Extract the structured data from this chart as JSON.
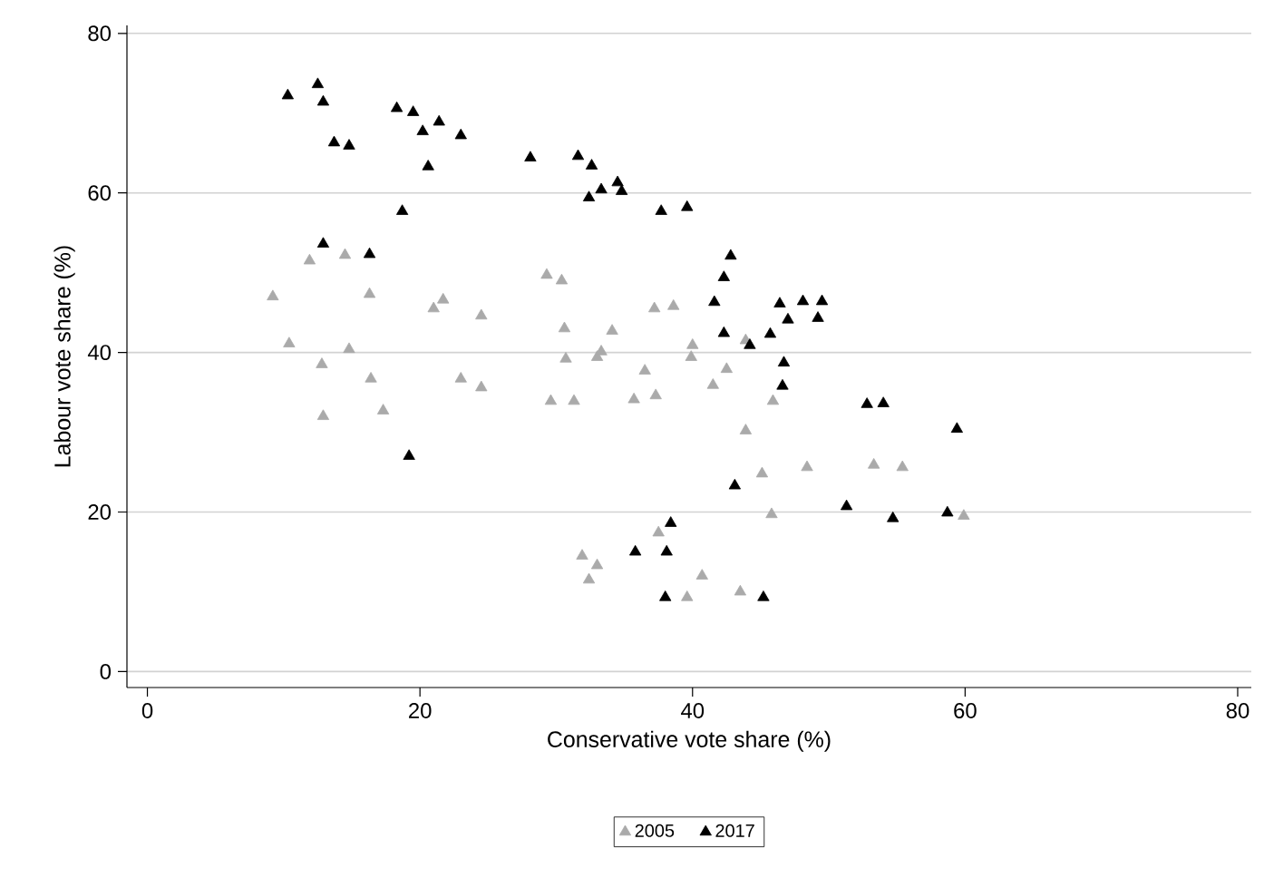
{
  "chart_data": {
    "type": "scatter",
    "xlabel": "Conservative vote share (%)",
    "ylabel": "Labour vote share (%)",
    "xlim": [
      -1.5,
      81
    ],
    "ylim": [
      -2,
      81
    ],
    "xticks": [
      0,
      20,
      40,
      60,
      80
    ],
    "yticks": [
      0,
      20,
      40,
      60,
      80
    ],
    "grid": "y",
    "legend": "bottom",
    "marker": "triangle",
    "series": [
      {
        "name": "2005",
        "color": "#aaaaaa",
        "x": [
          11.9,
          14.5,
          9.2,
          16.3,
          10.4,
          14.8,
          12.8,
          21.0,
          21.7,
          24.5,
          29.3,
          30.4,
          30.6,
          30.7,
          12.9,
          16.4,
          17.3,
          23.0,
          24.5,
          29.6,
          31.3,
          33.0,
          33.3,
          34.1,
          37.2,
          38.6,
          40.0,
          39.9,
          36.5,
          42.5,
          41.5,
          43.9,
          35.7,
          37.3,
          45.9,
          43.9,
          45.1,
          48.4,
          53.3,
          55.4,
          45.8,
          59.9,
          37.5,
          31.9,
          33.0,
          32.4,
          40.7,
          39.6,
          43.5
        ],
        "values": [
          51.5,
          52.2,
          47.0,
          47.3,
          41.1,
          40.4,
          38.5,
          45.5,
          46.6,
          44.6,
          49.7,
          49.0,
          43.0,
          39.2,
          32.0,
          36.7,
          32.7,
          36.7,
          35.6,
          33.9,
          33.9,
          39.4,
          40.1,
          42.7,
          45.5,
          45.8,
          40.9,
          39.4,
          37.7,
          37.9,
          35.9,
          41.5,
          34.1,
          34.6,
          33.9,
          30.2,
          24.8,
          25.6,
          25.9,
          25.6,
          19.7,
          19.5,
          17.4,
          14.5,
          13.3,
          11.5,
          12.0,
          9.3,
          10.0
        ]
      },
      {
        "name": "2017",
        "color": "#000000",
        "x": [
          10.3,
          12.5,
          12.9,
          13.7,
          14.8,
          18.3,
          19.5,
          20.2,
          21.4,
          23.0,
          20.6,
          18.7,
          12.9,
          16.3,
          28.1,
          31.6,
          32.6,
          32.4,
          33.3,
          34.5,
          34.8,
          37.7,
          39.6,
          42.8,
          42.3,
          41.6,
          42.3,
          44.2,
          45.7,
          46.4,
          47.0,
          48.1,
          49.5,
          49.2,
          46.7,
          46.6,
          52.8,
          54.0,
          59.4,
          43.1,
          19.2,
          51.3,
          54.7,
          58.7,
          38.4,
          35.8,
          38.1,
          38.0,
          45.2
        ],
        "values": [
          72.2,
          73.6,
          71.4,
          66.3,
          65.9,
          70.6,
          70.1,
          67.7,
          68.9,
          67.2,
          63.3,
          57.7,
          53.6,
          52.3,
          64.4,
          64.6,
          63.4,
          59.4,
          60.4,
          61.3,
          60.2,
          57.7,
          58.2,
          52.1,
          49.4,
          46.3,
          42.4,
          40.9,
          42.3,
          46.1,
          44.1,
          46.4,
          46.4,
          44.3,
          38.7,
          35.8,
          33.5,
          33.6,
          30.4,
          23.3,
          27.0,
          20.7,
          19.2,
          19.9,
          18.6,
          15.0,
          15.0,
          9.3,
          9.3
        ]
      }
    ]
  }
}
